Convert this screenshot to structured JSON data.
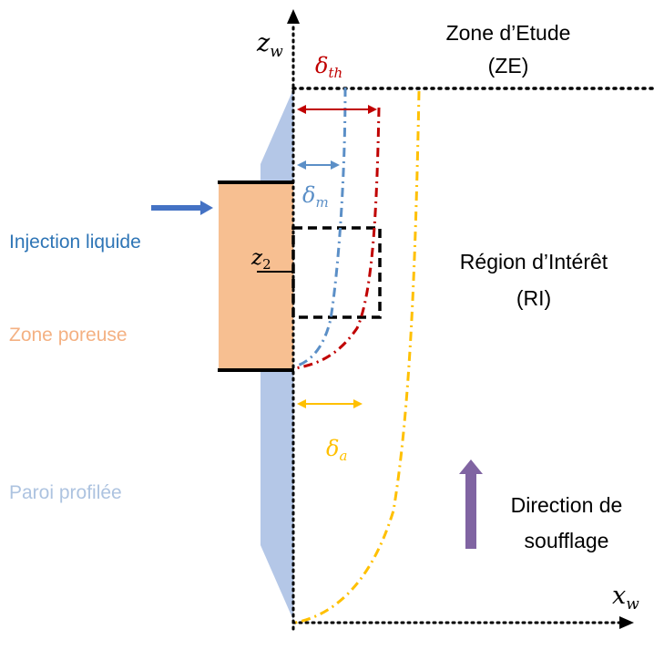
{
  "axes": {
    "z_label": "z",
    "z_sub": "w",
    "x_label": "x",
    "x_sub": "w"
  },
  "labels": {
    "zone_etude_line1": "Zone d’Etude",
    "zone_etude_line2": "(ZE)",
    "region_line1": "Région d’Intérêt",
    "region_line2": "(RI)",
    "injection": "Injection liquide",
    "zone_poreuse": "Zone poreuse",
    "paroi": "Paroi profilée",
    "direction_line1": "Direction de",
    "direction_line2": "soufflage",
    "z2_main": "z",
    "z2_sub": "2"
  },
  "thickness_labels": {
    "delta_th_main": "δ",
    "delta_th_sub": "th",
    "delta_m_main": "δ",
    "delta_m_sub": "m",
    "delta_a_main": "δ",
    "delta_a_sub": "a"
  },
  "colors": {
    "text_dark": "#000000",
    "injection_blue": "#2e75b6",
    "injection_arrow": "#4472c4",
    "porous_fill": "#f7bf91",
    "porous_text": "#f4b183",
    "wall_fill": "#b4c7e7",
    "wall_text": "#adc3e0",
    "thermal_red": "#c00000",
    "momentum_blue": "#5b8fc7",
    "acoustic_gold": "#ffc000",
    "direction_purple": "#8064a2"
  }
}
